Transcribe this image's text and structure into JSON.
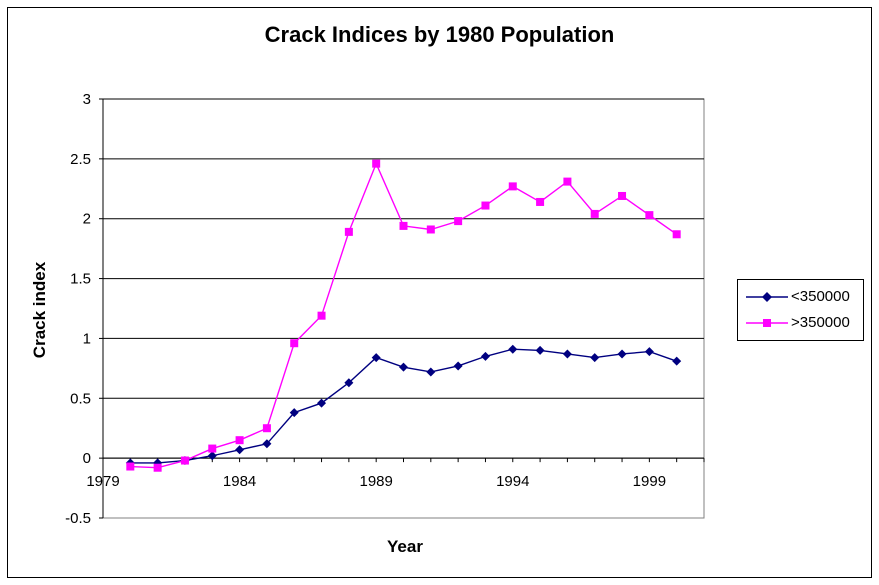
{
  "chart_data": {
    "type": "line",
    "title": "Crack Indices by 1980 Population",
    "xlabel": "Year",
    "ylabel": "Crack index",
    "xlim": [
      1979,
      2001
    ],
    "ylim": [
      -0.5,
      3
    ],
    "xticks": [
      "1979",
      "1984",
      "1989",
      "1994",
      "1999"
    ],
    "yticks": [
      "-0.5",
      "0",
      "0.5",
      "1",
      "1.5",
      "2",
      "2.5",
      "3"
    ],
    "grid": "horizontal",
    "legend_position": "right",
    "x": [
      1980,
      1981,
      1982,
      1983,
      1984,
      1985,
      1986,
      1987,
      1988,
      1989,
      1990,
      1991,
      1992,
      1993,
      1994,
      1995,
      1996,
      1997,
      1998,
      1999,
      2000
    ],
    "series": [
      {
        "name": "<350000",
        "color": "#000080",
        "marker": "diamond",
        "values": [
          -0.04,
          -0.04,
          -0.02,
          0.02,
          0.07,
          0.12,
          0.38,
          0.46,
          0.63,
          0.84,
          0.76,
          0.72,
          0.77,
          0.85,
          0.91,
          0.9,
          0.87,
          0.84,
          0.87,
          0.89,
          0.81
        ]
      },
      {
        "name": ">350000",
        "color": "#ff00ff",
        "marker": "square",
        "values": [
          -0.07,
          -0.08,
          -0.02,
          0.08,
          0.15,
          0.25,
          0.96,
          1.19,
          1.89,
          2.46,
          1.94,
          1.91,
          1.98,
          2.11,
          2.27,
          2.14,
          2.31,
          2.04,
          2.19,
          2.03,
          1.87
        ]
      }
    ]
  }
}
